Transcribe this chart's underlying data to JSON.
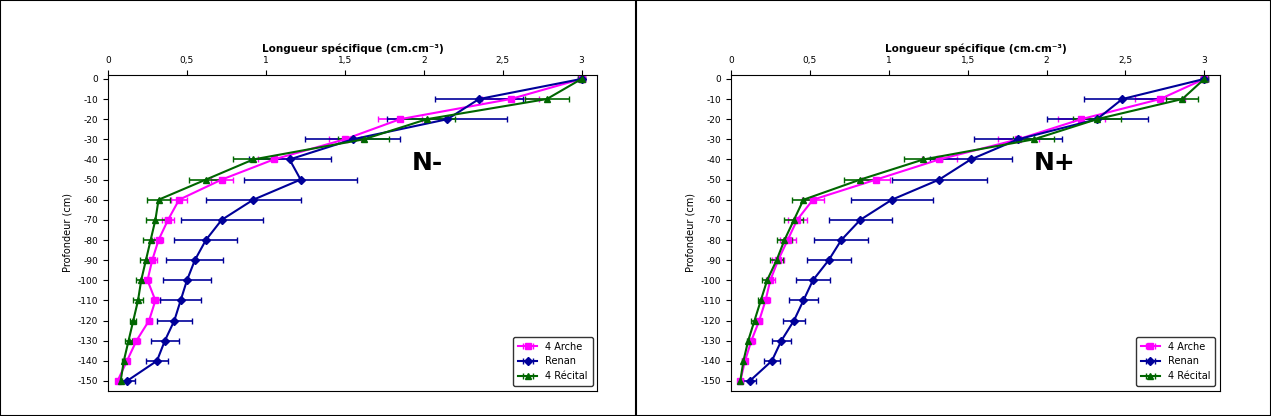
{
  "depth_values": [
    0,
    -10,
    -20,
    -30,
    -40,
    -50,
    -60,
    -70,
    -80,
    -90,
    -100,
    -110,
    -120,
    -130,
    -140,
    -150
  ],
  "varieties": [
    "4 Arche",
    "Renan",
    "4 Récital"
  ],
  "colors": [
    "#FF00FF",
    "#000099",
    "#006600"
  ],
  "markers": [
    "s",
    "D",
    "^"
  ],
  "panel_labels": [
    "N-",
    "N+"
  ],
  "Nminus": {
    "Arche_mean": [
      3.0,
      2.55,
      1.85,
      1.5,
      1.05,
      0.72,
      0.45,
      0.38,
      0.32,
      0.28,
      0.25,
      0.3,
      0.26,
      0.18,
      0.12,
      0.06
    ],
    "Arche_err": [
      0.02,
      0.18,
      0.14,
      0.1,
      0.1,
      0.07,
      0.05,
      0.04,
      0.03,
      0.03,
      0.02,
      0.03,
      0.02,
      0.02,
      0.01,
      0.01
    ],
    "Renan_mean": [
      3.0,
      2.35,
      2.15,
      1.55,
      1.15,
      1.22,
      0.92,
      0.72,
      0.62,
      0.55,
      0.5,
      0.46,
      0.42,
      0.36,
      0.31,
      0.12
    ],
    "Renan_err": [
      0.02,
      0.28,
      0.38,
      0.3,
      0.26,
      0.36,
      0.3,
      0.26,
      0.2,
      0.18,
      0.15,
      0.13,
      0.11,
      0.09,
      0.07,
      0.05
    ],
    "Recital_mean": [
      3.0,
      2.78,
      2.02,
      1.62,
      0.92,
      0.62,
      0.32,
      0.3,
      0.27,
      0.24,
      0.21,
      0.19,
      0.16,
      0.13,
      0.1,
      0.08
    ],
    "Recital_err": [
      0.02,
      0.14,
      0.18,
      0.16,
      0.13,
      0.11,
      0.07,
      0.06,
      0.05,
      0.04,
      0.03,
      0.03,
      0.02,
      0.02,
      0.01,
      0.01
    ]
  },
  "Nplus": {
    "Arche_mean": [
      3.0,
      2.72,
      2.22,
      1.82,
      1.32,
      0.92,
      0.52,
      0.42,
      0.36,
      0.3,
      0.25,
      0.22,
      0.18,
      0.13,
      0.09,
      0.06
    ],
    "Arche_err": [
      0.02,
      0.16,
      0.15,
      0.13,
      0.11,
      0.09,
      0.07,
      0.06,
      0.05,
      0.04,
      0.03,
      0.03,
      0.02,
      0.02,
      0.01,
      0.01
    ],
    "Renan_mean": [
      3.0,
      2.48,
      2.32,
      1.82,
      1.52,
      1.32,
      1.02,
      0.82,
      0.7,
      0.62,
      0.52,
      0.46,
      0.4,
      0.32,
      0.26,
      0.12
    ],
    "Renan_err": [
      0.02,
      0.24,
      0.32,
      0.28,
      0.26,
      0.3,
      0.26,
      0.2,
      0.17,
      0.14,
      0.11,
      0.09,
      0.07,
      0.06,
      0.05,
      0.04
    ],
    "Recital_mean": [
      3.0,
      2.86,
      2.32,
      1.92,
      1.22,
      0.82,
      0.46,
      0.4,
      0.34,
      0.29,
      0.23,
      0.19,
      0.15,
      0.11,
      0.08,
      0.06
    ],
    "Recital_err": [
      0.02,
      0.1,
      0.15,
      0.13,
      0.12,
      0.1,
      0.07,
      0.06,
      0.05,
      0.04,
      0.03,
      0.02,
      0.02,
      0.01,
      0.01,
      0.01
    ]
  },
  "xlim": [
    0,
    3.1
  ],
  "ylim": [
    -155,
    2
  ],
  "xtick_positions": [
    0,
    0.5,
    1.0,
    1.5,
    2.0,
    2.5,
    3.0
  ],
  "xtick_labels": [
    "0",
    "0,5",
    "1",
    "1,5",
    "2",
    "2,5",
    "3"
  ],
  "ytick_positions": [
    0,
    -10,
    -20,
    -30,
    -40,
    -50,
    -60,
    -70,
    -80,
    -90,
    -100,
    -110,
    -120,
    -130,
    -140,
    -150
  ],
  "ytick_labels": [
    "0",
    "-10",
    "-20",
    "-30",
    "-40",
    "-50",
    "-60",
    "-70",
    "-80",
    "-90",
    "-100",
    "-110",
    "-120",
    "-130",
    "-140",
    "-150"
  ],
  "bg_color": "#FFFFFF",
  "outer_bg": "#FFFFFF",
  "border_color": "#000000",
  "title_text": "Longueur spécifique (cm.cm⁻³)",
  "ylabel_text": "Profondeur (cm)",
  "title_fontsize": 7.5,
  "label_fontsize": 7,
  "tick_fontsize": 6.5,
  "legend_fontsize": 7,
  "panel_label_fontsize": 18,
  "markersize": 4,
  "linewidth": 1.5,
  "elinewidth": 1.2,
  "capsize": 2
}
